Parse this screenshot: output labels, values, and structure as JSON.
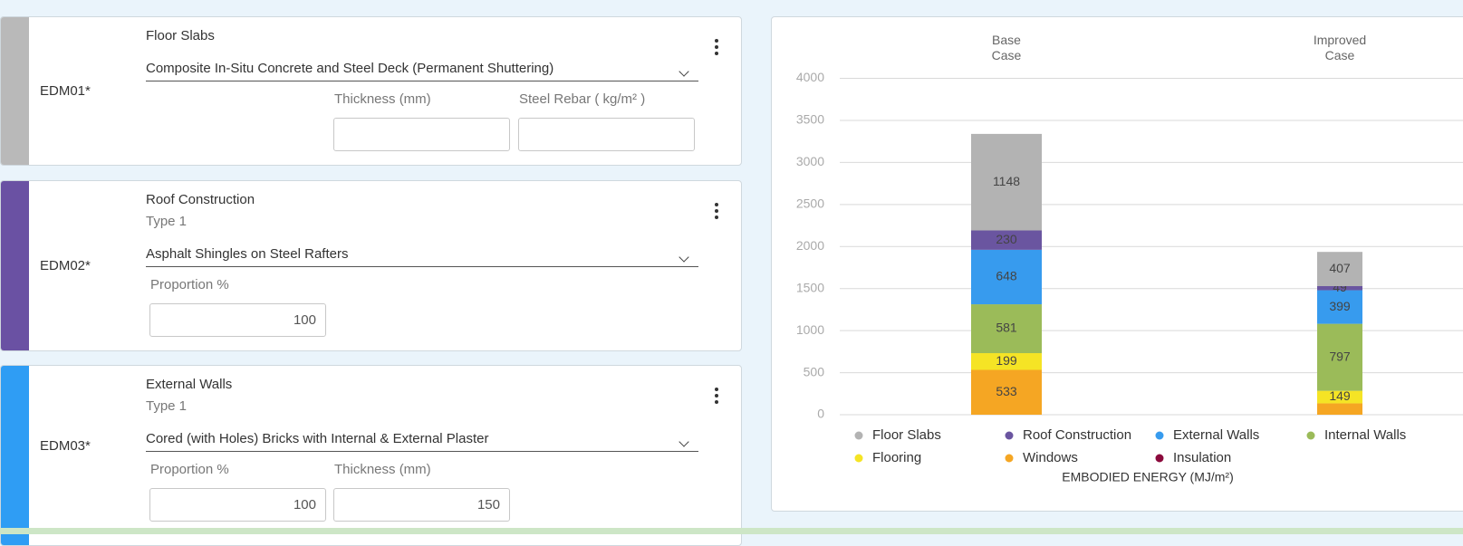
{
  "cards": [
    {
      "code": "EDM01*",
      "color": "#b9b9b9",
      "title": "Floor Slabs",
      "selection": "Composite In-Situ Concrete and Steel Deck (Permanent Shuttering)",
      "fields": [
        {
          "label": "Thickness (mm)"
        },
        {
          "label": "Steel Rebar ( kg/m² )"
        }
      ]
    },
    {
      "code": "EDM02*",
      "color": "#6a51a3",
      "title": "Roof Construction",
      "subtitle": "Type 1",
      "selection": "Asphalt Shingles on Steel Rafters",
      "fields": [
        {
          "label": "Proportion %",
          "value": 100
        }
      ]
    },
    {
      "code": "EDM03*",
      "color": "#2f9df4",
      "title": "External Walls",
      "subtitle": "Type 1",
      "selection": "Cored (with Holes) Bricks with Internal & External Plaster",
      "fields": [
        {
          "label": "Proportion %",
          "value": 100
        },
        {
          "label": "Thickness (mm)",
          "value": 150
        }
      ]
    }
  ],
  "chart_data": {
    "type": "stacked_bar",
    "categories": [
      "Base Case",
      "Improved Case"
    ],
    "xlabel": "EMBODIED ENERGY (MJ/m²)",
    "ylim": [
      0,
      4000
    ],
    "yticks": [
      0,
      500,
      1000,
      1500,
      2000,
      2500,
      3000,
      3500,
      4000
    ],
    "grid": true,
    "series": [
      {
        "name": "Floor Slabs",
        "color": "#b3b3b3",
        "values": [
          1148,
          407
        ]
      },
      {
        "name": "Roof Construction",
        "color": "#6a55a0",
        "values": [
          230,
          49
        ]
      },
      {
        "name": "External Walls",
        "color": "#379bee",
        "values": [
          648,
          399
        ]
      },
      {
        "name": "Internal Walls",
        "color": "#9bbb59",
        "values": [
          581,
          797
        ]
      },
      {
        "name": "Flooring",
        "color": "#f5e425",
        "values": [
          199,
          149
        ]
      },
      {
        "name": "Windows",
        "color": "#f5a623",
        "values": [
          533,
          135
        ],
        "value_labels": [
          "533",
          null
        ]
      },
      {
        "name": "Insulation",
        "color": "#8b0a3c",
        "values": [
          0,
          0
        ],
        "value_labels": [
          null,
          null
        ]
      }
    ]
  }
}
